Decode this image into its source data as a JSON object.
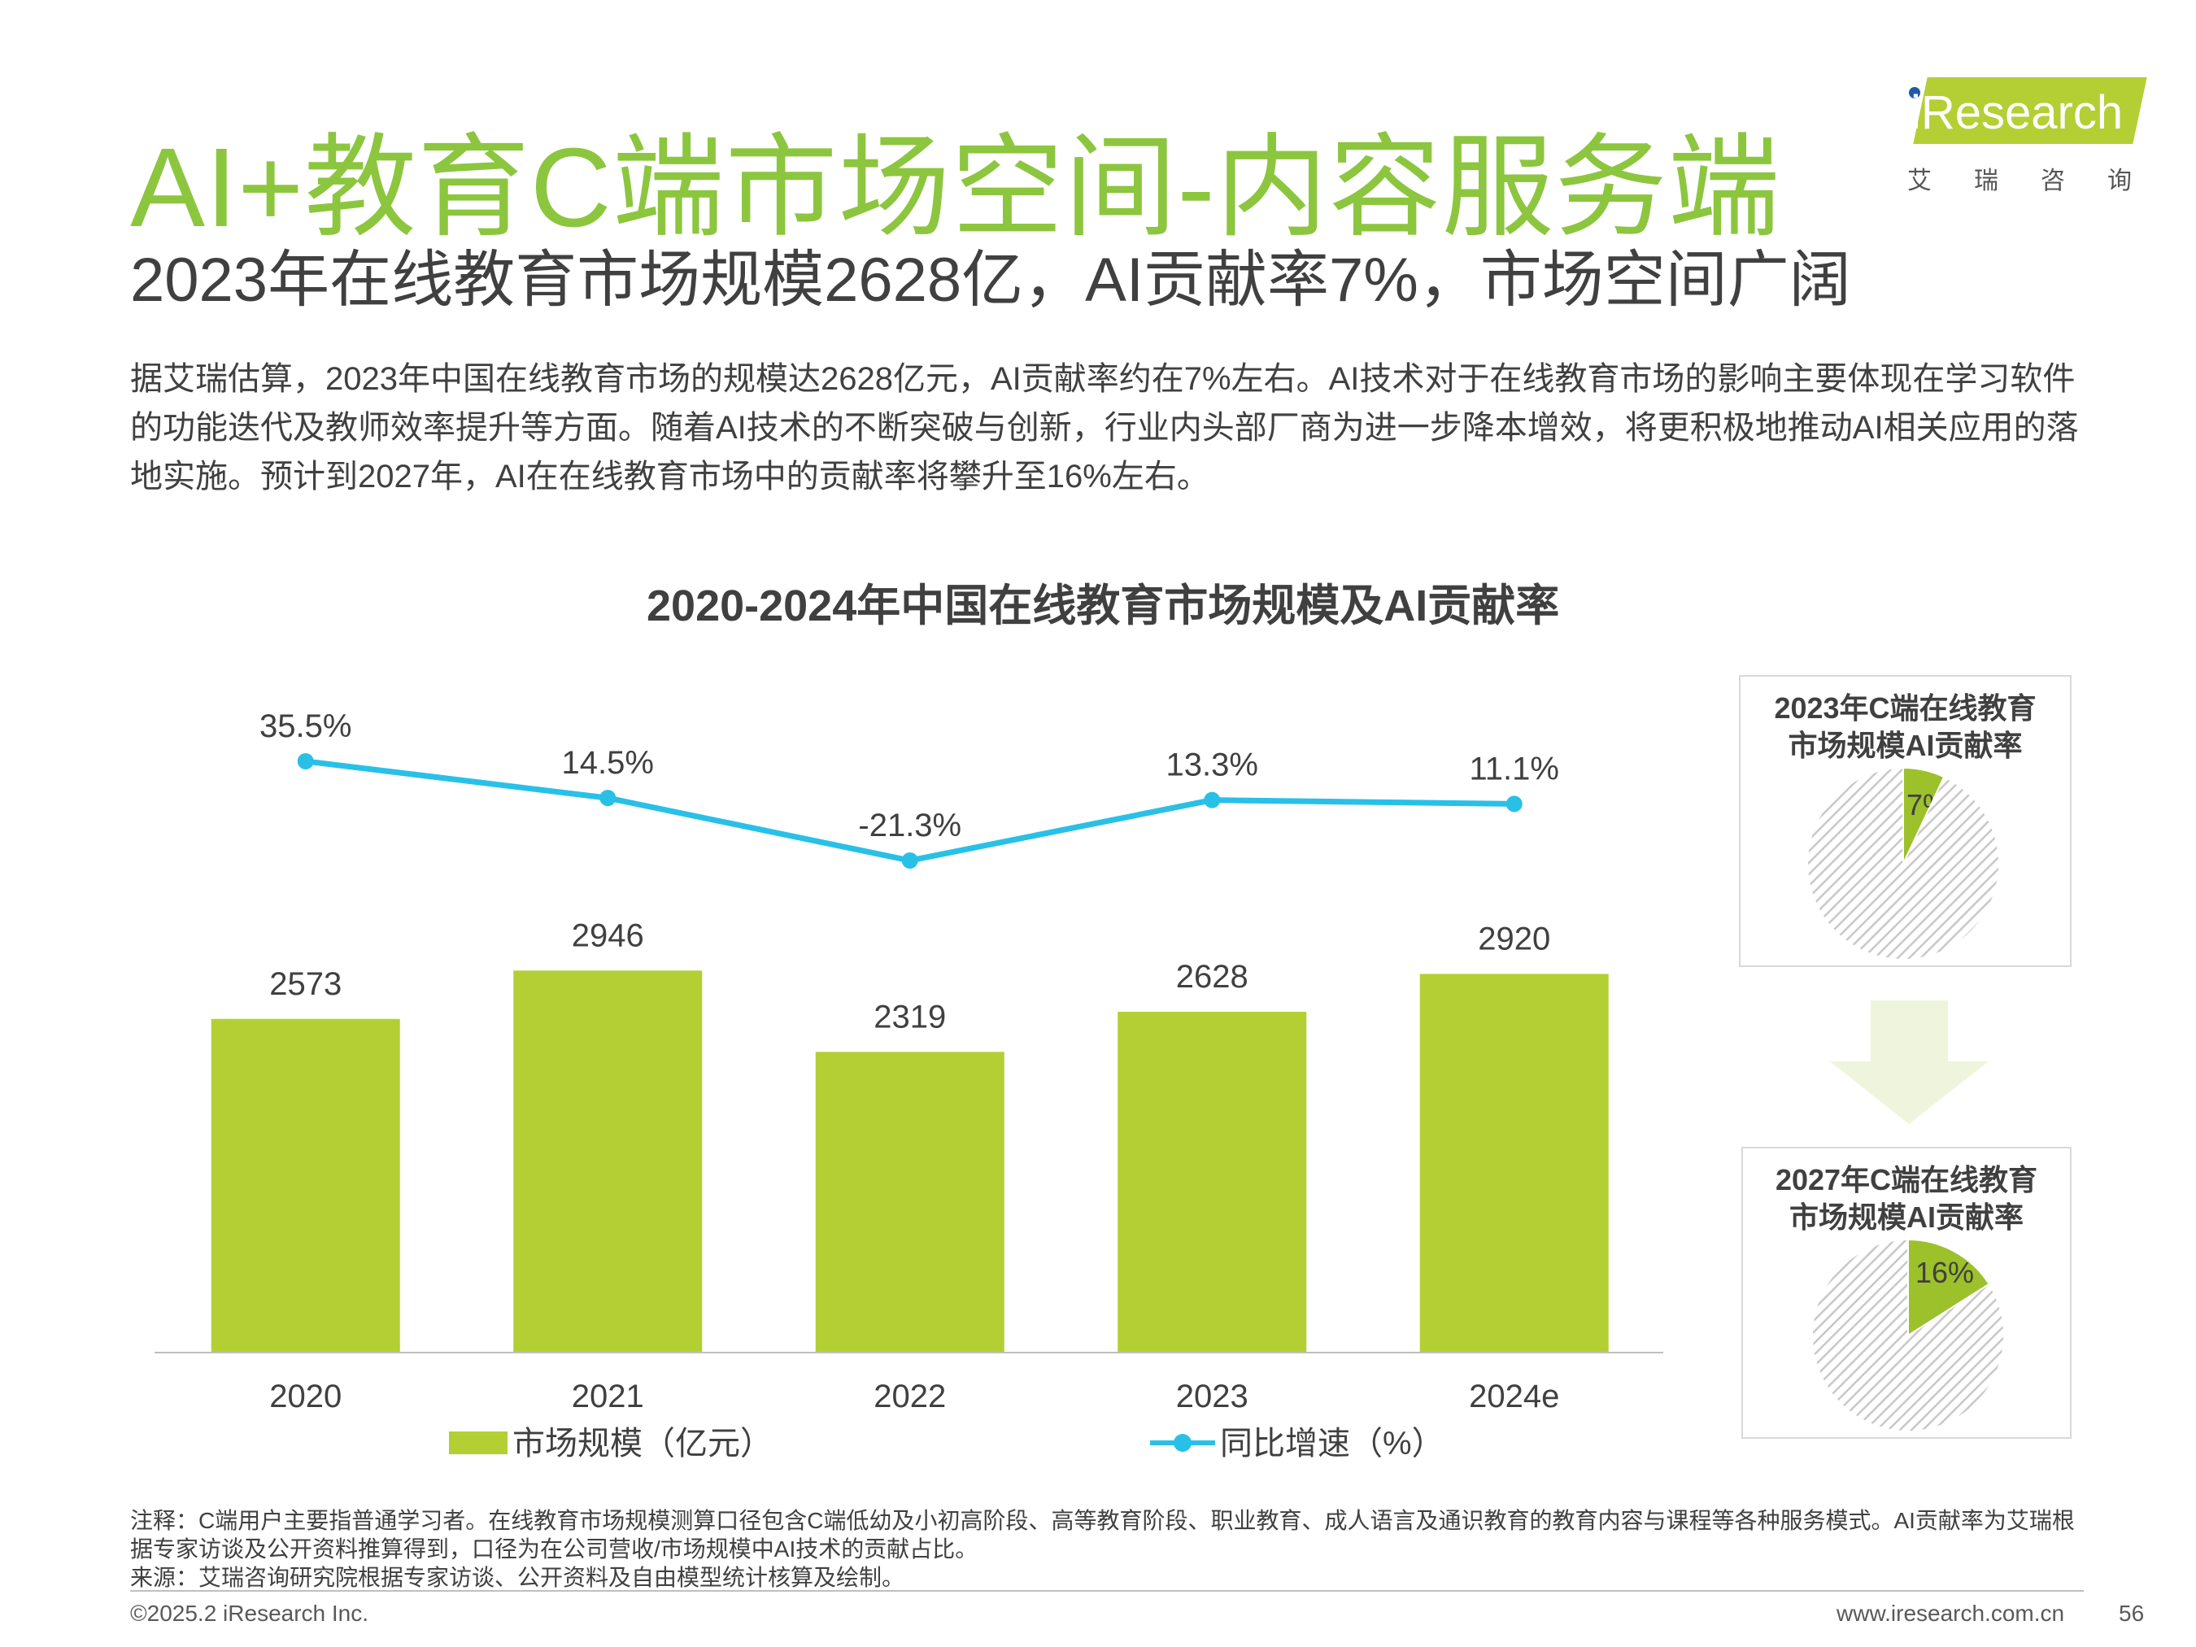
{
  "header": {
    "title": "AI+教育C端市场空间-内容服务端",
    "subtitle": "2023年在线教育市场规模2628亿，AI贡献率7%，市场空间广阔",
    "logo_text": "iResearch",
    "logo_sub": "艾瑞咨询"
  },
  "body": {
    "paragraph": "据艾瑞估算，2023年中国在线教育市场的规模达2628亿元，AI贡献率约在7%左右。AI技术对于在线教育市场的影响主要体现在学习软件的功能迭代及教师效率提升等方面。随着AI技术的不断突破与创新，行业内头部厂商为进一步降本增效，将更积极地推动AI相关应用的落地实施。预计到2027年，AI在在线教育市场中的贡献率将攀升至16%左右。"
  },
  "chart_data": [
    {
      "type": "bar",
      "title": "2020-2024年中国在线教育市场规模及AI贡献率",
      "categories": [
        "2020",
        "2021",
        "2022",
        "2023",
        "2024e"
      ],
      "series": [
        {
          "name": "市场规模（亿元）",
          "type": "bar",
          "values": [
            2573,
            2946,
            2319,
            2628,
            2920
          ],
          "labels": [
            "2573",
            "2946",
            "2319",
            "2628",
            "2920"
          ],
          "color": "#b3cf34"
        },
        {
          "name": "同比增速（%）",
          "type": "line",
          "values": [
            35.5,
            14.5,
            -21.3,
            13.3,
            11.1
          ],
          "labels": [
            "35.5%",
            "14.5%",
            "-21.3%",
            "13.3%",
            "11.1%"
          ],
          "color": "#29c0e8"
        }
      ],
      "legend": "bottom",
      "grid": false
    },
    {
      "type": "pie",
      "title": "2023年C端在线教育市场规模AI贡献率",
      "slices": [
        {
          "value": 7,
          "label": "7%",
          "color": "#9cc12b"
        },
        {
          "value": 93,
          "label": "",
          "color": "hatched-grey"
        }
      ]
    },
    {
      "type": "pie",
      "title": "2027年C端在线教育市场规模AI贡献率",
      "slices": [
        {
          "value": 16,
          "label": "16%",
          "color": "#9cc12b"
        },
        {
          "value": 84,
          "label": "",
          "color": "hatched-grey"
        }
      ]
    }
  ],
  "pies": {
    "pie1_title_line1": "2023年C端在线教育",
    "pie1_title_line2": "市场规模AI贡献率",
    "pie2_title_line1": "2027年C端在线教育",
    "pie2_title_line2": "市场规模AI贡献率"
  },
  "footer": {
    "note": "注释：C端用户主要指普通学习者。在线教育市场规模测算口径包含C端低幼及小初高阶段、高等教育阶段、职业教育、成人语言及通识教育的教育内容与课程等各种服务模式。AI贡献率为艾瑞根据专家访谈及公开资料推算得到，口径为在公司营收/市场规模中AI技术的贡献占比。",
    "source": "来源：艾瑞咨询研究院根据专家访谈、公开资料及自由模型统计核算及绘制。",
    "copyright": "©2025.2 iResearch Inc.",
    "website": "www.iresearch.com.cn",
    "page": "56"
  }
}
